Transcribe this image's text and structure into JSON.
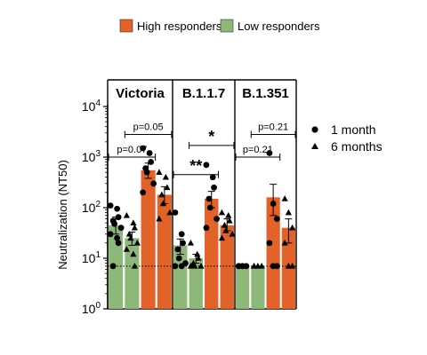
{
  "chart_data": {
    "type": "bar",
    "ylabel": "Neutralization (NT50)",
    "y_scale": "log10",
    "ylim": [
      1,
      10000
    ],
    "y_tick_exponents": [
      "0",
      "1",
      "2",
      "3",
      "4"
    ],
    "y_tick_base": "10",
    "detection_limit": 7,
    "group_legend": [
      {
        "name": "High responders",
        "color": "#E2622A"
      },
      {
        "name": "Low responders",
        "color": "#8DB87A"
      }
    ],
    "marker_legend": [
      {
        "label": "1 month",
        "marker": "circle"
      },
      {
        "label": "6 months",
        "marker": "triangle"
      }
    ],
    "panels": [
      {
        "title": "Victoria",
        "bars": [
          {
            "group": "Low responders",
            "timepoint": "1 month",
            "value": 45,
            "err": [
              30,
              65
            ],
            "points": [
              110,
              95,
              65,
              55,
              48,
              40,
              30,
              25,
              20,
              7
            ]
          },
          {
            "group": "Low responders",
            "timepoint": "6 months",
            "value": 25,
            "err": [
              18,
              33
            ],
            "points": [
              70,
              50,
              40,
              30,
              25,
              20,
              15,
              12,
              7
            ]
          },
          {
            "group": "High responders",
            "timepoint": "1 month",
            "value": 550,
            "err": [
              380,
              760
            ],
            "points": [
              1500,
              1200,
              800,
              600,
              500,
              300,
              200
            ]
          },
          {
            "group": "High responders",
            "timepoint": "6 months",
            "value": 180,
            "err": [
              120,
              260
            ],
            "points": [
              500,
              400,
              250,
              180,
              120,
              80,
              60
            ]
          }
        ],
        "comparisons": [
          {
            "label": "p=0.07",
            "from": 0,
            "to": 2
          },
          {
            "label": "p=0.05",
            "from": 1,
            "to": 3
          }
        ]
      },
      {
        "title": "B.1.1.7",
        "bars": [
          {
            "group": "Low responders",
            "timepoint": "1 month",
            "value": 18,
            "err": [
              12,
              24
            ],
            "points": [
              80,
              30,
              20,
              15,
              10,
              8,
              7,
              7
            ]
          },
          {
            "group": "Low responders",
            "timepoint": "6 months",
            "value": 10,
            "err": [
              8,
              12
            ],
            "points": [
              20,
              12,
              10,
              8,
              7,
              7,
              7
            ]
          },
          {
            "group": "High responders",
            "timepoint": "1 month",
            "value": 150,
            "err": [
              100,
              210
            ],
            "points": [
              700,
              400,
              250,
              150,
              100,
              60,
              40
            ]
          },
          {
            "group": "High responders",
            "timepoint": "6 months",
            "value": 45,
            "err": [
              35,
              60
            ],
            "points": [
              80,
              70,
              55,
              45,
              35,
              30,
              25
            ]
          }
        ],
        "comparisons": [
          {
            "label": "**",
            "from": 0,
            "to": 2
          },
          {
            "label": "*",
            "from": 1,
            "to": 3
          }
        ]
      },
      {
        "title": "B.1.351",
        "bars": [
          {
            "group": "Low responders",
            "timepoint": "1 month",
            "value": 7,
            "err": [
              7,
              7
            ],
            "points": [
              7,
              7,
              7,
              7,
              7
            ]
          },
          {
            "group": "Low responders",
            "timepoint": "6 months",
            "value": 7,
            "err": [
              7,
              7
            ],
            "points": [
              7,
              7,
              7,
              7
            ]
          },
          {
            "group": "High responders",
            "timepoint": "1 month",
            "value": 160,
            "err": [
              70,
              290
            ],
            "points": [
              1200,
              120,
              60,
              20,
              7,
              7
            ]
          },
          {
            "group": "High responders",
            "timepoint": "6 months",
            "value": 40,
            "err": [
              20,
              60
            ],
            "points": [
              150,
              80,
              40,
              20,
              7,
              7
            ]
          }
        ],
        "comparisons": [
          {
            "label": "p=0.21",
            "from": 0,
            "to": 2
          },
          {
            "label": "p=0.21",
            "from": 1,
            "to": 3
          }
        ]
      }
    ]
  }
}
